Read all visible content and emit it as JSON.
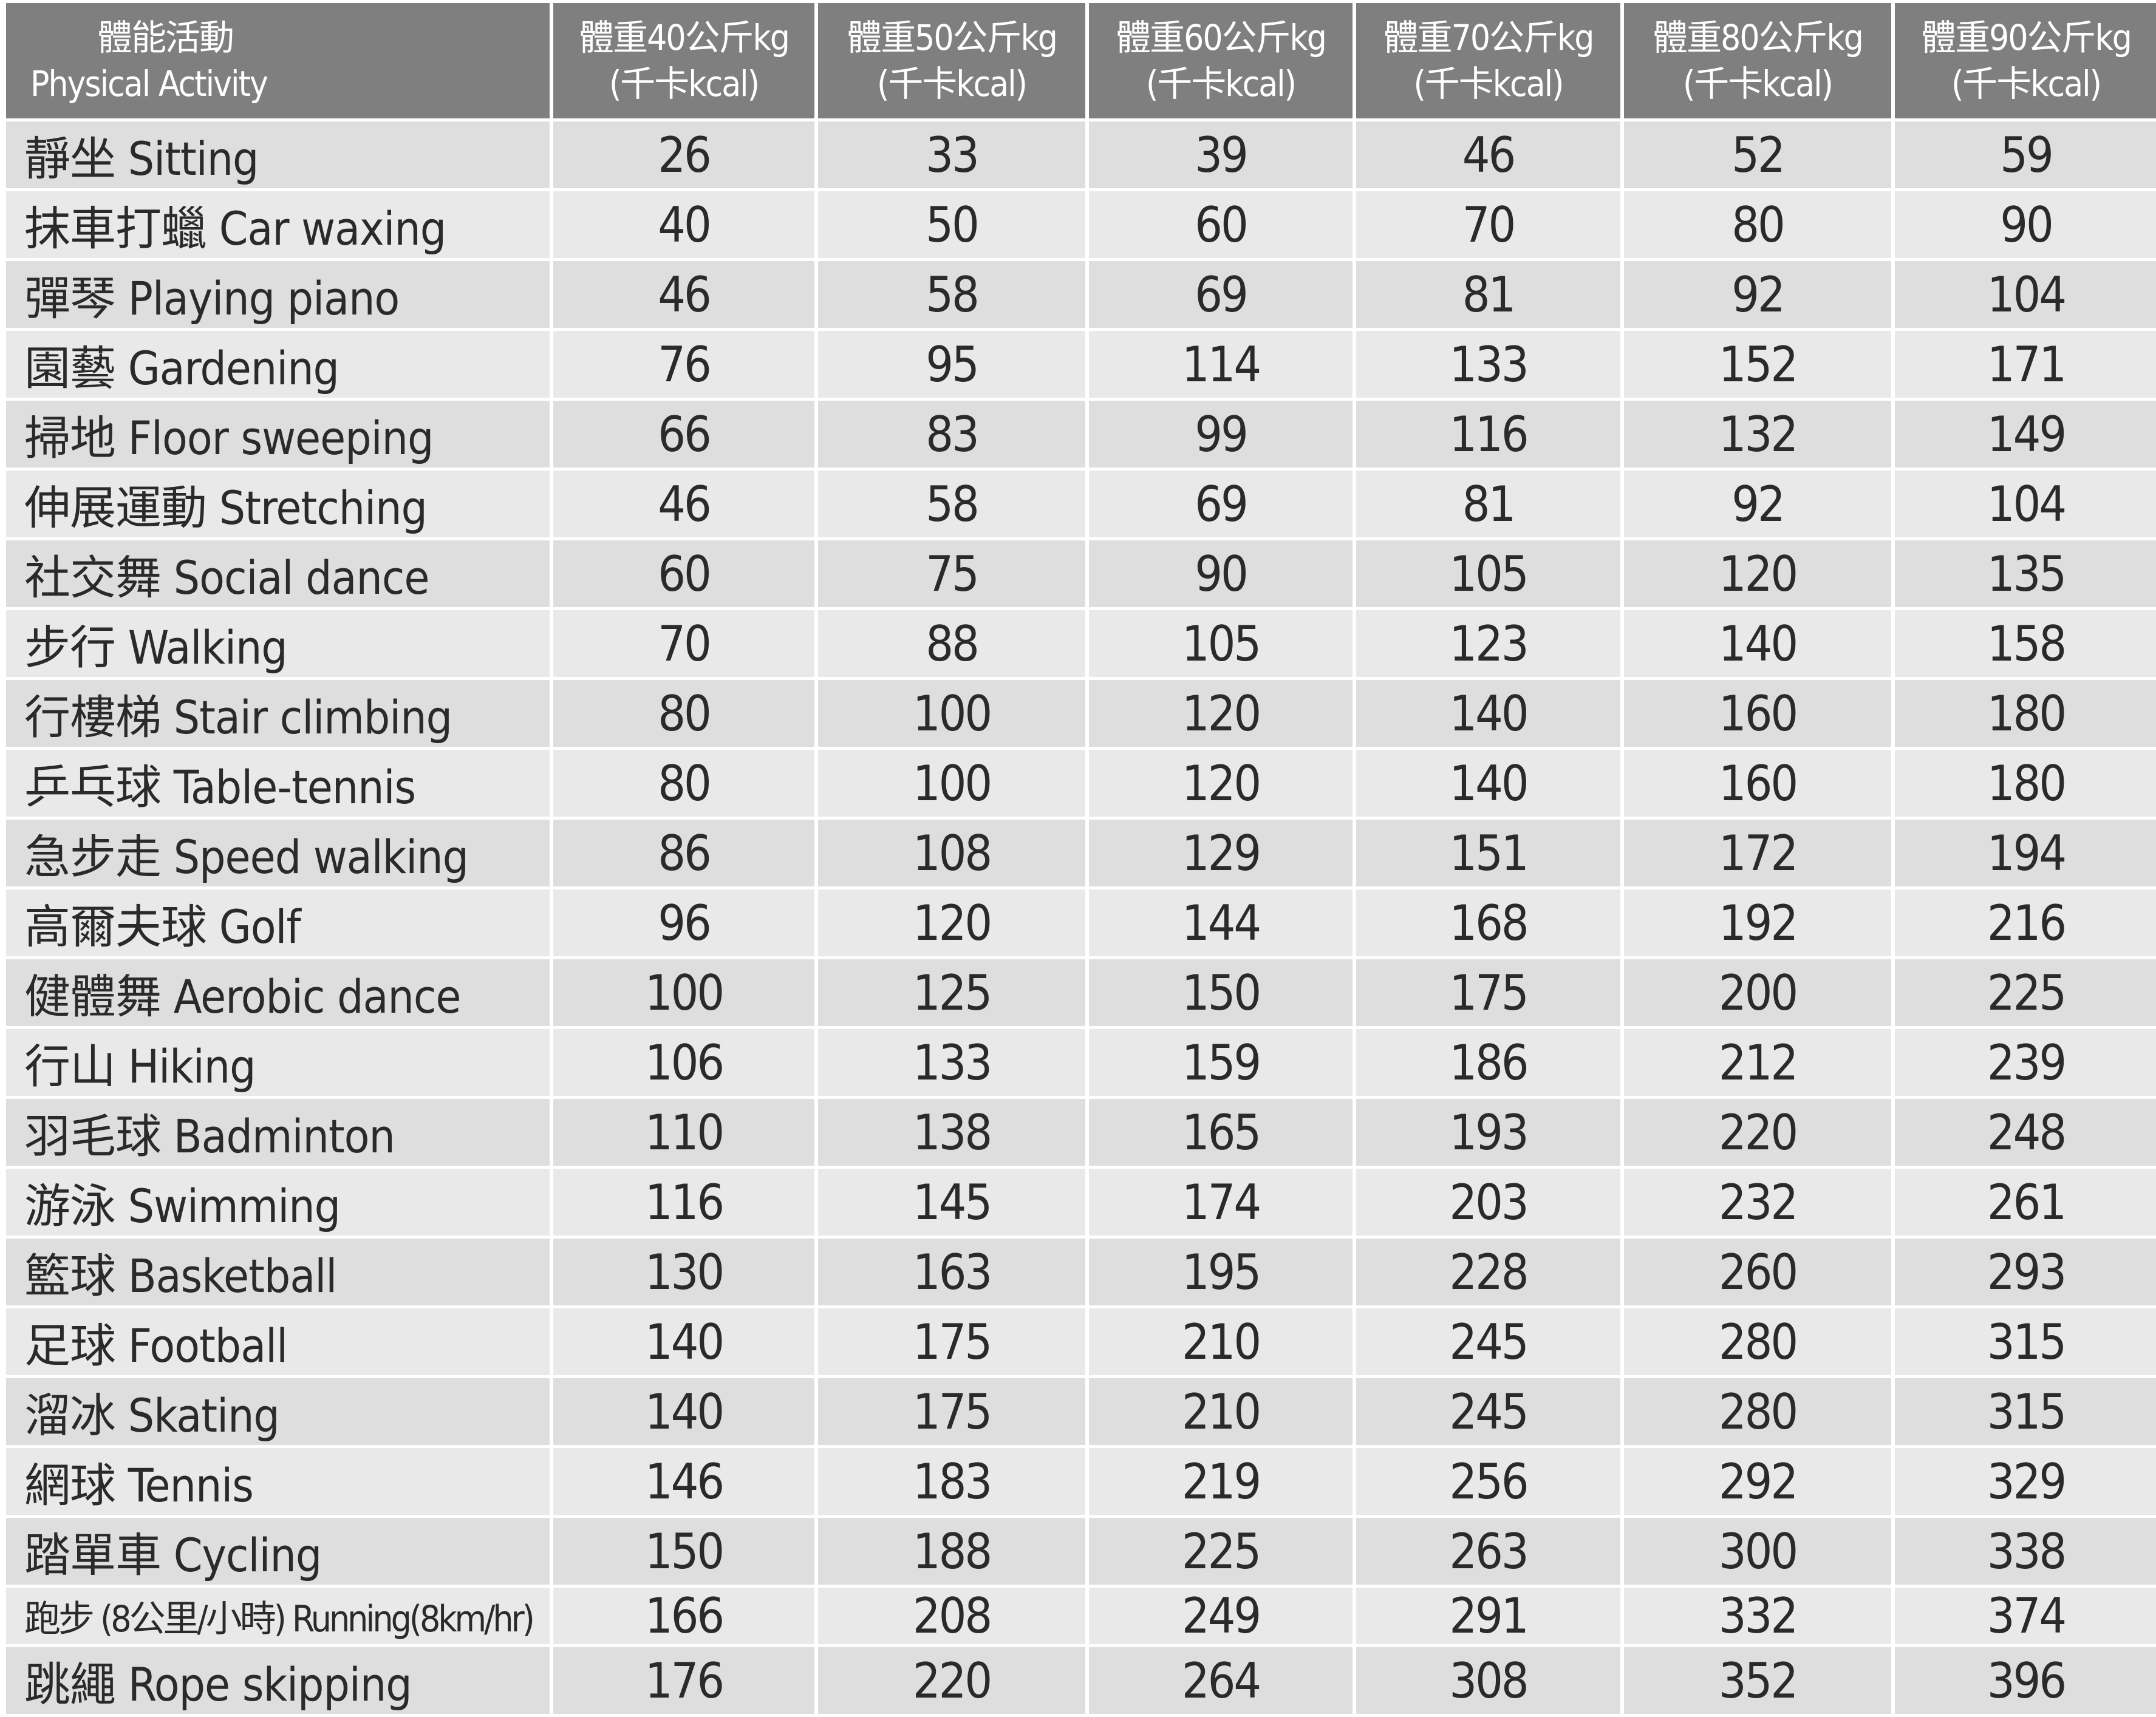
{
  "header": {
    "activity_zh": "體能活動",
    "activity_en": "Physical  Activity",
    "weights": [
      {
        "line1": "體重40公斤kg",
        "line2": "(千卡kcal)"
      },
      {
        "line1": "體重50公斤kg",
        "line2": "(千卡kcal)"
      },
      {
        "line1": "體重60公斤kg",
        "line2": "(千卡kcal)"
      },
      {
        "line1": "體重70公斤kg",
        "line2": "(千卡kcal)"
      },
      {
        "line1": "體重80公斤kg",
        "line2": "(千卡kcal)"
      },
      {
        "line1": "體重90公斤kg",
        "line2": "(千卡kcal)"
      }
    ]
  },
  "rows": [
    {
      "activity": "靜坐 Sitting",
      "values": [
        "26",
        "33",
        "39",
        "46",
        "52",
        "59"
      ]
    },
    {
      "activity": "抹車打蠟 Car waxing",
      "values": [
        "40",
        "50",
        "60",
        "70",
        "80",
        "90"
      ]
    },
    {
      "activity": "彈琴 Playing piano",
      "values": [
        "46",
        "58",
        "69",
        "81",
        "92",
        "104"
      ]
    },
    {
      "activity": "園藝 Gardening",
      "values": [
        "76",
        "95",
        "114",
        "133",
        "152",
        "171"
      ]
    },
    {
      "activity": "掃地 Floor sweeping",
      "values": [
        "66",
        "83",
        "99",
        "116",
        "132",
        "149"
      ]
    },
    {
      "activity": "伸展運動 Stretching",
      "values": [
        "46",
        "58",
        "69",
        "81",
        "92",
        "104"
      ]
    },
    {
      "activity": "社交舞 Social dance",
      "values": [
        "60",
        "75",
        "90",
        "105",
        "120",
        "135"
      ]
    },
    {
      "activity": "步行 Walking",
      "values": [
        "70",
        "88",
        "105",
        "123",
        "140",
        "158"
      ]
    },
    {
      "activity": "行樓梯 Stair climbing",
      "values": [
        "80",
        "100",
        "120",
        "140",
        "160",
        "180"
      ]
    },
    {
      "activity": "乒乓球 Table-tennis",
      "values": [
        "80",
        "100",
        "120",
        "140",
        "160",
        "180"
      ]
    },
    {
      "activity": "急步走 Speed walking",
      "values": [
        "86",
        "108",
        "129",
        "151",
        "172",
        "194"
      ]
    },
    {
      "activity": "高爾夫球 Golf",
      "values": [
        "96",
        "120",
        "144",
        "168",
        "192",
        "216"
      ]
    },
    {
      "activity": "健體舞 Aerobic dance",
      "values": [
        "100",
        "125",
        "150",
        "175",
        "200",
        "225"
      ]
    },
    {
      "activity": "行山 Hiking",
      "values": [
        "106",
        "133",
        "159",
        "186",
        "212",
        "239"
      ]
    },
    {
      "activity": "羽毛球 Badminton",
      "values": [
        "110",
        "138",
        "165",
        "193",
        "220",
        "248"
      ]
    },
    {
      "activity": "游泳 Swimming",
      "values": [
        "116",
        "145",
        "174",
        "203",
        "232",
        "261"
      ]
    },
    {
      "activity": "籃球 Basketball",
      "values": [
        "130",
        "163",
        "195",
        "228",
        "260",
        "293"
      ]
    },
    {
      "activity": "足球 Football",
      "values": [
        "140",
        "175",
        "210",
        "245",
        "280",
        "315"
      ]
    },
    {
      "activity": "溜冰 Skating",
      "values": [
        "140",
        "175",
        "210",
        "245",
        "280",
        "315"
      ]
    },
    {
      "activity": "網球 Tennis",
      "values": [
        "146",
        "183",
        "219",
        "256",
        "292",
        "329"
      ]
    },
    {
      "activity": "踏單車 Cycling",
      "values": [
        "150",
        "188",
        "225",
        "263",
        "300",
        "338"
      ]
    },
    {
      "activity": "跑步 (8公里/小時) Running(8km/hr)",
      "values": [
        "166",
        "208",
        "249",
        "291",
        "332",
        "374"
      ]
    },
    {
      "activity": "跳繩 Rope skipping",
      "values": [
        "176",
        "220",
        "264",
        "308",
        "352",
        "396"
      ]
    }
  ]
}
